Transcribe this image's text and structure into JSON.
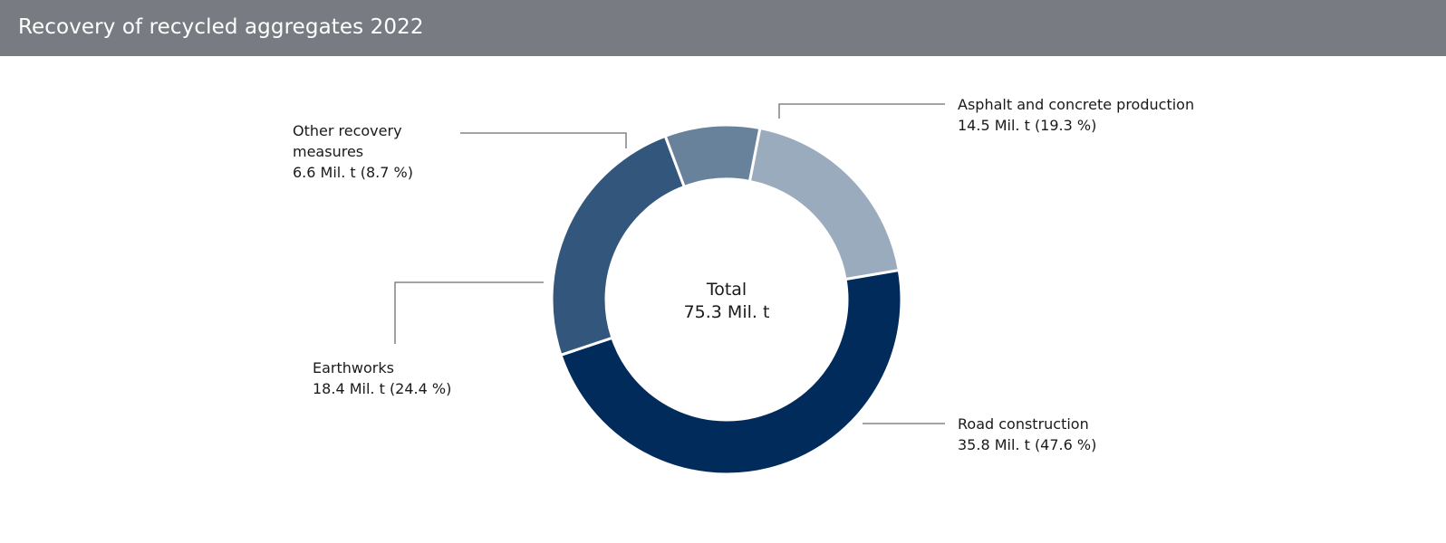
{
  "header": {
    "title": "Recovery of recycled aggregates 2022"
  },
  "chart_data": {
    "type": "pie",
    "title": "Recovery of recycled aggregates 2022",
    "center_label": {
      "line1": "Total",
      "line2": "75.3 Mil. t"
    },
    "slices": [
      {
        "name": "Asphalt and concrete production",
        "value": 14.5,
        "percent": 19.3,
        "color": "#9aabbd",
        "label_lines": [
          "Asphalt and concrete production",
          "14.5 Mil. t (19.3 %)"
        ]
      },
      {
        "name": "Road construction",
        "value": 35.8,
        "percent": 47.6,
        "color": "#002b5a",
        "label_lines": [
          "Road construction",
          "35.8 Mil. t (47.6 %)"
        ]
      },
      {
        "name": "Earthworks",
        "value": 18.4,
        "percent": 24.4,
        "color": "#33577c",
        "label_lines": [
          "Earthworks",
          "18.4 Mil. t (24.4 %)"
        ]
      },
      {
        "name": "Other recovery measures",
        "value": 6.6,
        "percent": 8.7,
        "color": "#68829c",
        "label_lines": [
          "Other recovery",
          "measures",
          "6.6 Mil. t (8.7 %)"
        ]
      }
    ]
  }
}
